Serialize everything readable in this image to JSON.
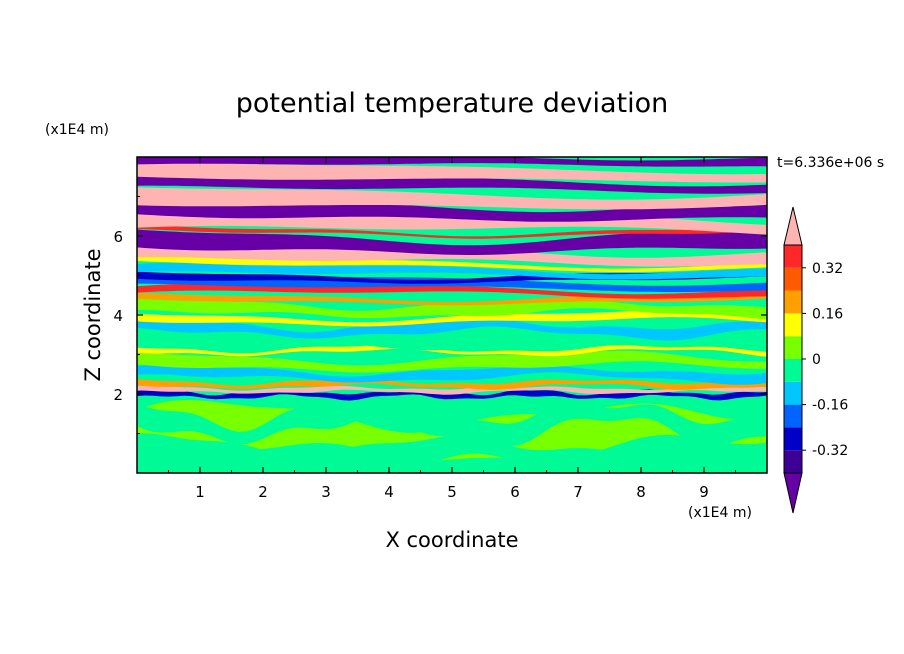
{
  "chart_data": {
    "type": "heatmap",
    "title": "potential temperature deviation",
    "xlabel": "X coordinate",
    "ylabel": "Z coordinate",
    "x_unit": "(x1E4 m)",
    "y_unit": "(x1E4 m)",
    "time_label": "t=6.336e+06 s",
    "x_ticks": [
      "1",
      "2",
      "3",
      "4",
      "5",
      "6",
      "7",
      "8",
      "9"
    ],
    "y_ticks": [
      "2",
      "4",
      "6"
    ],
    "xlim": [
      0,
      10
    ],
    "ylim": [
      0,
      8
    ],
    "colorbar": {
      "labels": [
        "0.32",
        "0.16",
        "0",
        "-0.16",
        "-0.32"
      ],
      "label_levels": [
        0.32,
        0.16,
        0,
        -0.16,
        -0.32
      ],
      "levels": [
        -0.4,
        -0.32,
        -0.24,
        -0.16,
        -0.08,
        0,
        0.08,
        0.16,
        0.24,
        0.32,
        0.4
      ],
      "colors": [
        "#6600a6",
        "#3c0096",
        "#0000c8",
        "#0064ff",
        "#00c8ff",
        "#00fa96",
        "#78ff00",
        "#ffff00",
        "#ffa000",
        "#ff5a00",
        "#ff2828",
        "#ffb4b4"
      ],
      "extend": "both"
    },
    "field_layers": [
      {
        "z": [
          0,
          2.0
        ],
        "dominant": 0.05,
        "note": "near-neutral lower layer"
      },
      {
        "z": [
          2.0,
          4.7
        ],
        "dominant": -0.05,
        "note": "mixed alternating bands"
      },
      {
        "z": [
          4.7,
          8.0
        ],
        "dominant": 0.45,
        "note": "strong alternating bands"
      }
    ]
  }
}
